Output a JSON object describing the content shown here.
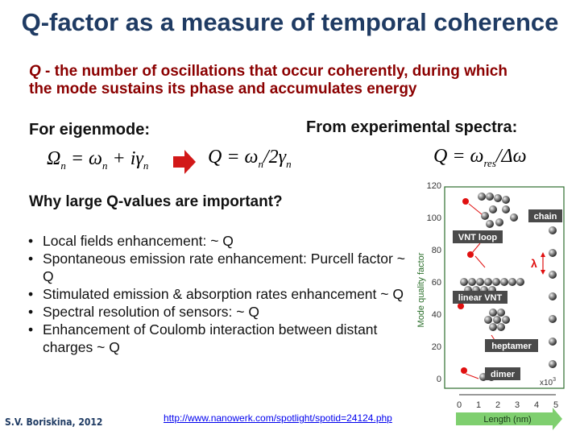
{
  "title": "Q-factor as a measure of temporal coherence",
  "definition": {
    "q": "Q",
    "text": " - the number of oscillations that occur coherently, during which the mode sustains its phase and accumulates energy"
  },
  "eigenmode_label": "For eigenmode:",
  "experimental_label": "From experimental spectra:",
  "formulas": {
    "omega_n": "Ω",
    "omega_n_sub": "n",
    "eq_mid": " = ω",
    "eq_mid_sub": "n",
    "plus_i_gamma": " + iγ",
    "plus_i_gamma_sub": "n",
    "q_eig": "Q = ω",
    "q_eig_sub": "n",
    "q_eig_rest": "/2γ",
    "q_eig_rest_sub": "n",
    "q_exp": "Q = ω",
    "q_exp_sub": "res",
    "q_exp_rest": "/Δω"
  },
  "question": "Why large Q-values are important?",
  "bullets": [
    "Local fields enhancement: ~ Q",
    "Spontaneous emission rate enhancement: Purcell factor ~ Q",
    "Stimulated emission & absorption rates enhancement ~ Q",
    "Spectral resolution of sensors: ~ Q",
    "Enhancement of Coulomb interaction between distant charges ~ Q"
  ],
  "bullet_char": "•",
  "author": "S.V. Boriskina, 2012",
  "link": "http://www.nanowerk.com/spotlight/spotid=24124.php",
  "figure": {
    "ylabel": "Mode quality factor",
    "xlabel": "Length (nm)",
    "x_multiplier": "x10",
    "x_multiplier_exp": "3",
    "yticks": [
      "120",
      "100",
      "80",
      "60",
      "40",
      "20",
      "0"
    ],
    "xticks": [
      "0",
      "1",
      "2",
      "3",
      "4",
      "5"
    ],
    "labels": {
      "chain": "chain",
      "vnt_loop": "VNT loop",
      "lambda": "λ",
      "linear_vnt": "linear VNT",
      "heptamer": "heptamer",
      "dimer": "dimer"
    },
    "colors": {
      "label_bg": "#4a4a4a",
      "axis_box": "#2e6e2e",
      "length_arrow": "#7fcf6f",
      "red_dot": "#e01010"
    }
  }
}
